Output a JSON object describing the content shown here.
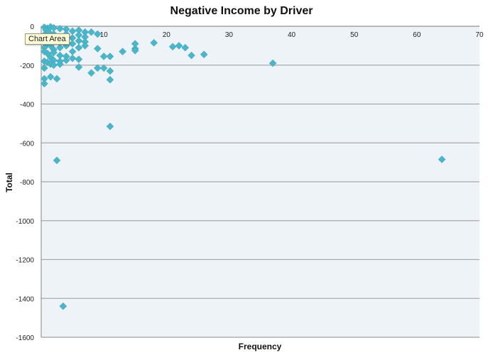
{
  "chart_data": {
    "type": "scatter",
    "title": "Negative Income by Driver",
    "xlabel": "Frequency",
    "ylabel": "Total",
    "xlim": [
      0,
      70
    ],
    "ylim": [
      -1600,
      0
    ],
    "xticks": [
      10,
      20,
      30,
      40,
      50,
      60,
      70
    ],
    "yticks": [
      0,
      -200,
      -400,
      -600,
      -800,
      -1000,
      -1200,
      -1400,
      -1600
    ],
    "grid": true,
    "legend": "none",
    "colors": {
      "plot_background": "#edf3f7",
      "marker": "#4bb6c9",
      "gridline": "#a9a9a9"
    },
    "points": [
      [
        0.5,
        -5
      ],
      [
        1,
        -10
      ],
      [
        1.5,
        -3
      ],
      [
        2,
        -8
      ],
      [
        3,
        -12
      ],
      [
        0.8,
        -20
      ],
      [
        1.2,
        -30
      ],
      [
        0.5,
        -45
      ],
      [
        1,
        -60
      ],
      [
        2,
        -40
      ],
      [
        2.5,
        -55
      ],
      [
        3,
        -70
      ],
      [
        1,
        -90
      ],
      [
        0.5,
        -110
      ],
      [
        1.5,
        -100
      ],
      [
        2,
        -120
      ],
      [
        3,
        -85
      ],
      [
        4,
        -15
      ],
      [
        4,
        -40
      ],
      [
        5,
        -25
      ],
      [
        5,
        -60
      ],
      [
        6,
        -20
      ],
      [
        6,
        -45
      ],
      [
        7,
        -30
      ],
      [
        7,
        -55
      ],
      [
        7,
        -80
      ],
      [
        8,
        -30
      ],
      [
        9,
        -40
      ],
      [
        4,
        -100
      ],
      [
        5,
        -90
      ],
      [
        6,
        -75
      ],
      [
        3,
        -110
      ],
      [
        2,
        -135
      ],
      [
        1,
        -140
      ],
      [
        0.5,
        -130
      ],
      [
        1.5,
        -160
      ],
      [
        2,
        -175
      ],
      [
        3,
        -150
      ],
      [
        4,
        -155
      ],
      [
        5,
        -130
      ],
      [
        6,
        -110
      ],
      [
        7,
        -100
      ],
      [
        3,
        -180
      ],
      [
        4,
        -175
      ],
      [
        5,
        -165
      ],
      [
        6,
        -170
      ],
      [
        0.5,
        -180
      ],
      [
        1,
        -185
      ],
      [
        1.5,
        -195
      ],
      [
        2,
        -200
      ],
      [
        3,
        -195
      ],
      [
        0.5,
        -215
      ],
      [
        6,
        -210
      ],
      [
        8,
        -240
      ],
      [
        9,
        -215
      ],
      [
        10,
        -215
      ],
      [
        9,
        -115
      ],
      [
        10,
        -155
      ],
      [
        11,
        -155
      ],
      [
        11,
        -230
      ],
      [
        11,
        -275
      ],
      [
        0.5,
        -270
      ],
      [
        1.5,
        -260
      ],
      [
        2.5,
        -270
      ],
      [
        0.5,
        -295
      ],
      [
        13,
        -130
      ],
      [
        15,
        -115
      ],
      [
        15,
        -125
      ],
      [
        15,
        -90
      ],
      [
        18,
        -85
      ],
      [
        21,
        -105
      ],
      [
        22,
        -100
      ],
      [
        23,
        -110
      ],
      [
        24,
        -150
      ],
      [
        26,
        -145
      ],
      [
        37,
        -190
      ],
      [
        11,
        -515
      ],
      [
        2.5,
        -690
      ],
      [
        64,
        -685
      ],
      [
        3.5,
        -1440
      ]
    ]
  },
  "tooltip": {
    "text": "Chart Area"
  }
}
